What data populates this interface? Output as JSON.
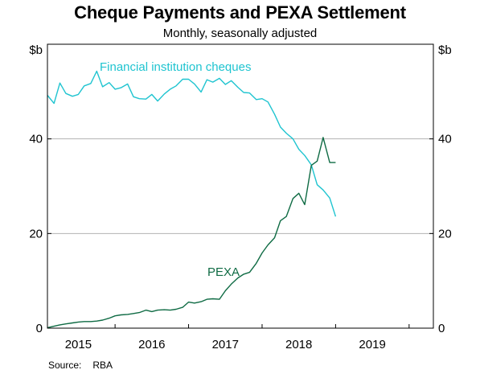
{
  "chart_data": {
    "type": "line",
    "title": "Cheque Payments and PEXA Settlement",
    "subtitle": "Monthly, seasonally adjusted",
    "unit_left": "$b",
    "unit_right": "$b",
    "ylim": [
      0,
      60
    ],
    "yticks": [
      0,
      20,
      40
    ],
    "xlim": [
      2014.58,
      2019.83
    ],
    "x_tick_labels": [
      "2015",
      "2016",
      "2017",
      "2018",
      "2019"
    ],
    "x_tick_label_positions": [
      2015.0,
      2016.0,
      2017.0,
      2018.0,
      2019.0
    ],
    "x_year_boundaries": [
      2015.5,
      2016.5,
      2017.5,
      2018.5,
      2019.5
    ],
    "horizontal_gridlines": [
      20,
      40
    ],
    "series": [
      {
        "name": "Financial institution cheques",
        "color": "#1fc4d0",
        "x": [
          2014.58,
          2014.67,
          2014.75,
          2014.83,
          2014.92,
          2015.0,
          2015.08,
          2015.17,
          2015.25,
          2015.33,
          2015.42,
          2015.5,
          2015.58,
          2015.67,
          2015.75,
          2015.83,
          2015.92,
          2016.0,
          2016.08,
          2016.17,
          2016.25,
          2016.33,
          2016.42,
          2016.5,
          2016.58,
          2016.67,
          2016.75,
          2016.83,
          2016.92,
          2017.0,
          2017.08,
          2017.17,
          2017.25,
          2017.33,
          2017.42,
          2017.5,
          2017.58,
          2017.67,
          2017.75,
          2017.83,
          2017.92,
          2018.0,
          2018.08,
          2018.17,
          2018.25,
          2018.33,
          2018.42,
          2018.5
        ],
        "y": [
          49.2,
          47.5,
          51.8,
          49.6,
          49.0,
          49.4,
          51.2,
          51.7,
          54.3,
          51.0,
          51.9,
          50.5,
          50.8,
          51.6,
          48.9,
          48.5,
          48.4,
          49.4,
          48.0,
          49.5,
          50.5,
          51.2,
          52.6,
          52.6,
          51.6,
          49.9,
          52.5,
          52.0,
          52.8,
          51.5,
          52.3,
          50.9,
          49.8,
          49.7,
          48.3,
          48.5,
          47.8,
          45.2,
          42.5,
          41.2,
          40.0,
          37.8,
          36.5,
          34.5,
          30.3,
          29.2,
          27.5,
          23.6
        ]
      },
      {
        "name": "PEXA",
        "color": "#0f6b44",
        "x": [
          2014.58,
          2014.67,
          2014.75,
          2014.83,
          2014.92,
          2015.0,
          2015.08,
          2015.17,
          2015.25,
          2015.33,
          2015.42,
          2015.5,
          2015.58,
          2015.67,
          2015.75,
          2015.83,
          2015.92,
          2016.0,
          2016.08,
          2016.17,
          2016.25,
          2016.33,
          2016.42,
          2016.5,
          2016.58,
          2016.67,
          2016.75,
          2016.83,
          2016.92,
          2017.0,
          2017.08,
          2017.17,
          2017.25,
          2017.33,
          2017.42,
          2017.5,
          2017.58,
          2017.67,
          2017.75,
          2017.83,
          2017.92,
          2018.0,
          2018.08,
          2018.17,
          2018.25,
          2018.33,
          2018.42,
          2018.5
        ],
        "y": [
          0.1,
          0.4,
          0.7,
          0.9,
          1.1,
          1.3,
          1.4,
          1.4,
          1.5,
          1.7,
          2.1,
          2.6,
          2.8,
          2.9,
          3.1,
          3.3,
          3.8,
          3.5,
          3.8,
          3.9,
          3.8,
          4.0,
          4.4,
          5.5,
          5.3,
          5.6,
          6.1,
          6.2,
          6.1,
          7.9,
          9.3,
          10.6,
          11.4,
          11.8,
          13.7,
          15.9,
          17.6,
          19.1,
          22.7,
          23.6,
          27.4,
          28.5,
          26.1,
          34.4,
          35.3,
          40.3,
          35.0,
          35.0
        ]
      }
    ],
    "annotations": [
      {
        "text": "Financial institution cheques",
        "series": 0
      },
      {
        "text": "PEXA",
        "series": 1
      }
    ],
    "legend": "inline labels",
    "grid": true,
    "source_label": "Source:",
    "source": "RBA"
  }
}
